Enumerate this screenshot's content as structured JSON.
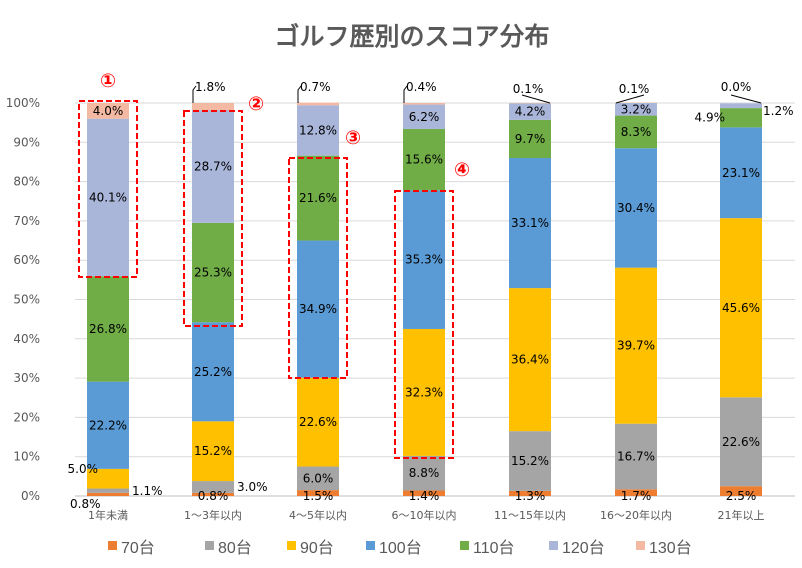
{
  "chart_data": {
    "type": "bar",
    "stacked": true,
    "percent": true,
    "title": "ゴルフ歴別のスコア分布",
    "xlabel": "",
    "ylabel": "",
    "ylim": [
      0,
      100
    ],
    "yticks": [
      "0%",
      "10%",
      "20%",
      "30%",
      "40%",
      "50%",
      "60%",
      "70%",
      "80%",
      "90%",
      "100%"
    ],
    "grid": true,
    "legend_position": "bottom",
    "categories": [
      "1年未満",
      "1～3年以内",
      "4～5年以内",
      "6～10年以内",
      "11～15年以内",
      "16～20年以内",
      "21年以上"
    ],
    "series": [
      {
        "name": "70台",
        "color": "#ed7d31",
        "values": [
          0.8,
          0.8,
          1.5,
          1.4,
          1.3,
          1.7,
          2.5
        ]
      },
      {
        "name": "80台",
        "color": "#a5a5a5",
        "values": [
          1.1,
          3.0,
          6.0,
          8.8,
          15.2,
          16.7,
          22.6
        ]
      },
      {
        "name": "90台",
        "color": "#ffc000",
        "values": [
          5.0,
          15.2,
          22.6,
          32.3,
          36.4,
          39.7,
          45.6
        ]
      },
      {
        "name": "100台",
        "color": "#5b9bd5",
        "values": [
          22.2,
          25.2,
          34.9,
          35.3,
          33.1,
          30.4,
          23.1
        ]
      },
      {
        "name": "110台",
        "color": "#70ad47",
        "values": [
          26.8,
          25.3,
          21.6,
          15.6,
          9.7,
          8.3,
          4.9
        ]
      },
      {
        "name": "120台",
        "color": "#a9b6da",
        "values": [
          40.1,
          28.7,
          12.8,
          6.2,
          4.2,
          3.2,
          1.2
        ]
      },
      {
        "name": "130台",
        "color": "#f4b9a3",
        "values": [
          4.0,
          1.8,
          0.7,
          0.4,
          0.1,
          0.1,
          0.0
        ]
      }
    ],
    "annotations": [
      {
        "label": "①",
        "category": "1年未満",
        "series_range": [
          "120台",
          "130台"
        ]
      },
      {
        "label": "②",
        "category": "1～3年以内",
        "series_range": [
          "110台",
          "120台"
        ]
      },
      {
        "label": "③",
        "category": "4～5年以内",
        "series_range": [
          "100台",
          "110台"
        ]
      },
      {
        "label": "④",
        "category": "6～10年以内",
        "series_range": [
          "90台",
          "100台"
        ]
      }
    ]
  }
}
